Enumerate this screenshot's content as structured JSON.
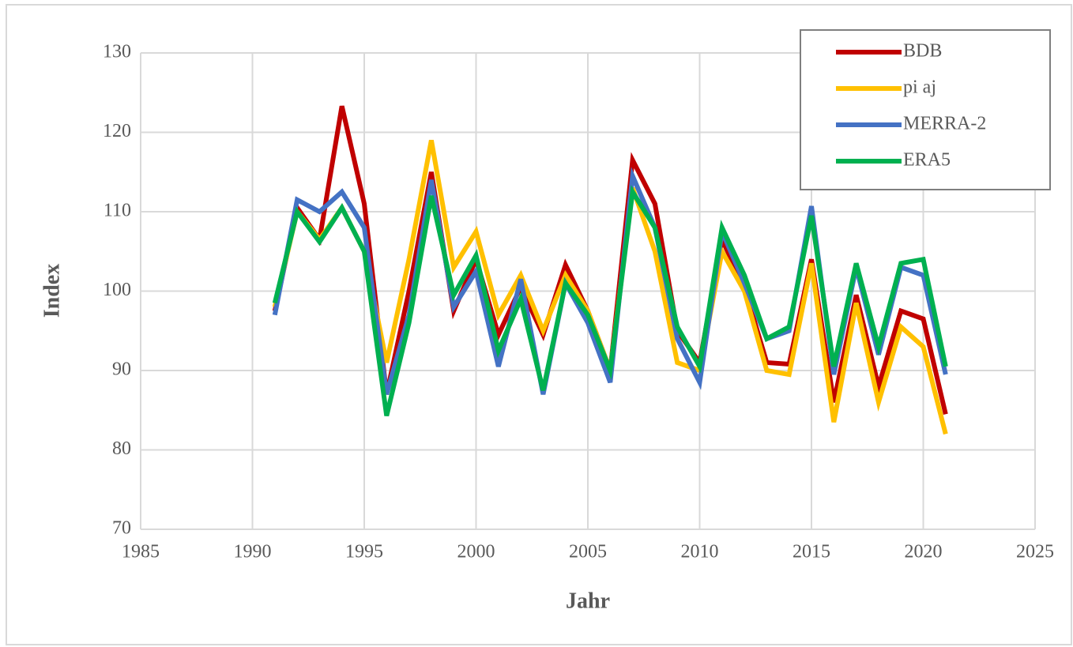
{
  "chart_data": {
    "type": "line",
    "x_label": "Jahr",
    "y_label": "Index",
    "x": [
      1991,
      1992,
      1993,
      1994,
      1995,
      1996,
      1997,
      1998,
      1999,
      2000,
      2001,
      2002,
      2003,
      2004,
      2005,
      2006,
      2007,
      2008,
      2009,
      2010,
      2011,
      2012,
      2013,
      2014,
      2015,
      2016,
      2017,
      2018,
      2019,
      2020,
      2021
    ],
    "series": [
      {
        "name": "BDB",
        "color": "#c00000",
        "values": [
          97.5,
          110.5,
          106.5,
          123.3,
          111,
          87,
          100,
          115,
          97.5,
          104,
          94.5,
          100.5,
          94.5,
          103.3,
          97.5,
          90,
          116.5,
          111,
          95,
          91,
          106.5,
          100.5,
          91,
          90.8,
          104,
          86,
          99.5,
          88,
          97.5,
          96.5,
          84.5
        ]
      },
      {
        "name": "pi aj",
        "color": "#ffc000",
        "values": [
          98,
          110,
          106.5,
          110.5,
          105,
          91,
          104,
          119,
          103,
          107.5,
          97,
          102,
          95,
          102,
          97.5,
          90,
          113,
          105,
          91,
          90,
          105,
          100,
          90,
          89.5,
          103.5,
          83.5,
          98.5,
          86,
          95.5,
          93,
          82
        ]
      },
      {
        "name": "MERRA-2",
        "color": "#4472c4",
        "values": [
          97,
          111.5,
          110,
          112.5,
          108,
          87,
          97,
          114,
          98,
          102.5,
          90.5,
          101.5,
          87,
          101,
          96,
          88.5,
          114.5,
          108,
          94,
          88.5,
          107.5,
          101,
          94,
          95,
          110.7,
          89.5,
          103,
          92,
          103,
          102,
          89.5
        ]
      },
      {
        "name": "ERA5",
        "color": "#00b050",
        "values": [
          98.5,
          110,
          106.2,
          110.5,
          105,
          84.3,
          96,
          112,
          99.5,
          104.5,
          92.5,
          99,
          87.5,
          101,
          97,
          90,
          112.5,
          108,
          95.5,
          90.5,
          108,
          102,
          94,
          95.5,
          109.5,
          90.5,
          103.5,
          93,
          103.5,
          104,
          90.5
        ]
      }
    ],
    "xlim": [
      1985,
      2025
    ],
    "xticks": [
      1985,
      1990,
      1995,
      2000,
      2005,
      2010,
      2015,
      2020,
      2025
    ],
    "ylim": [
      70,
      130
    ],
    "yticks": [
      70,
      80,
      90,
      100,
      110,
      120,
      130
    ],
    "grid": true,
    "legend": "top-right"
  }
}
